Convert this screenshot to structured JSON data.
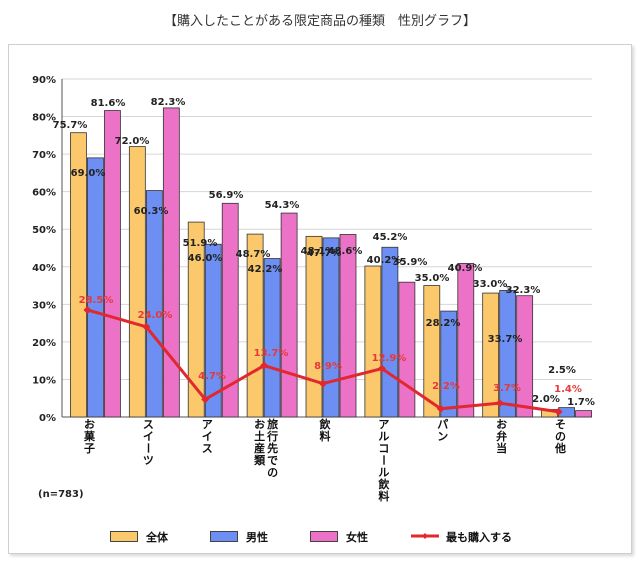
{
  "title": "【購入したことがある限定商品の種類　性別グラフ】",
  "sample_note": "(n=783)",
  "colors": {
    "all": "#fbc96b",
    "male": "#6d8ef2",
    "female": "#ec72c8",
    "line": "#e0282e",
    "label_red": "#e8383d"
  },
  "legend": {
    "all": "全体",
    "male": "男性",
    "female": "女性",
    "line": "最も購入する"
  },
  "chart_data": {
    "type": "bar",
    "title": "【購入したことがある限定商品の種類　性別グラフ】",
    "categories": [
      "お菓子",
      "スイーツ",
      "アイス",
      "旅行先でのお土産類",
      "飲料",
      "アルコール飲料",
      "パン",
      "お弁当",
      "その他"
    ],
    "ylim": [
      0,
      90
    ],
    "ytick_labels": [
      "0%",
      "10%",
      "20%",
      "30%",
      "40%",
      "50%",
      "60%",
      "70%",
      "80%",
      "90%"
    ],
    "series": [
      {
        "name": "全体",
        "kind": "bar",
        "values": [
          75.7,
          72.0,
          51.9,
          48.7,
          48.1,
          40.2,
          35.0,
          33.0,
          2.0
        ],
        "labels": [
          "75.7%",
          "72.0%",
          "51.9%",
          "48.7%",
          "48.1%",
          "40.2%",
          "35.0%",
          "33.0%",
          "2.0%"
        ]
      },
      {
        "name": "男性",
        "kind": "bar",
        "values": [
          69.0,
          60.3,
          46.0,
          42.2,
          47.7,
          45.2,
          28.2,
          33.7,
          2.5
        ],
        "labels": [
          "69.0%",
          "60.3%",
          "46.0%",
          "42.2%",
          "47.7%",
          "45.2%",
          "28.2%",
          "33.7%",
          "2.5%"
        ]
      },
      {
        "name": "女性",
        "kind": "bar",
        "values": [
          81.6,
          82.3,
          56.9,
          54.3,
          48.6,
          35.9,
          40.9,
          32.3,
          1.7
        ],
        "labels": [
          "81.6%",
          "82.3%",
          "56.9%",
          "54.3%",
          "48.6%",
          "35.9%",
          "40.9%",
          "32.3%",
          "1.7%"
        ]
      },
      {
        "name": "最も購入する",
        "kind": "line",
        "values": [
          28.5,
          24.0,
          4.7,
          13.7,
          8.9,
          12.9,
          2.2,
          3.7,
          1.4
        ],
        "labels": [
          "28.5%",
          "24.0%",
          "4.7%",
          "13.7%",
          "8.9%",
          "12.9%",
          "2.2%",
          "3.7%",
          "1.4%"
        ]
      }
    ]
  }
}
